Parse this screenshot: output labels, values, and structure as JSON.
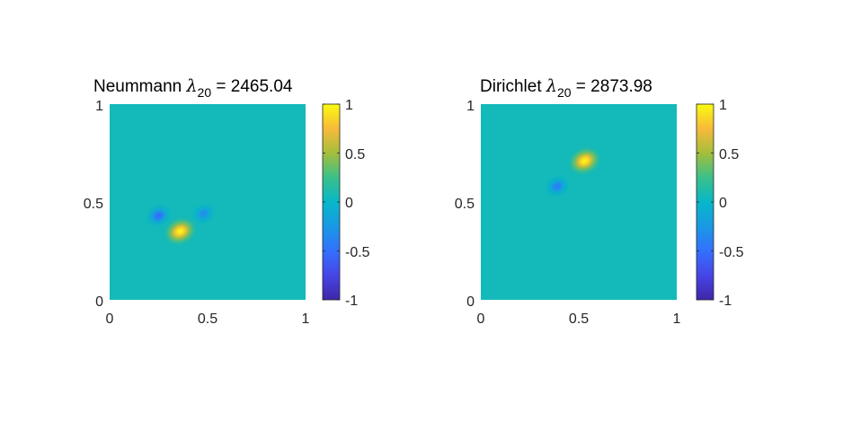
{
  "chart_data": [
    {
      "type": "heatmap",
      "title": {
        "prefix": "Neummann ",
        "symbol": "λ",
        "subscript": "20",
        "suffix": " = 2465.04"
      },
      "xlim": [
        0,
        1
      ],
      "ylim": [
        0,
        1
      ],
      "xticks": [
        "0",
        "0.5",
        "1"
      ],
      "yticks": [
        "0",
        "0.5",
        "1"
      ],
      "colorbar": {
        "range": [
          -1,
          1
        ],
        "ticks": [
          "-1",
          "-0.5",
          "0",
          "0.5",
          "1"
        ],
        "colormap": "parula"
      },
      "background_value": 0.06,
      "features": [
        {
          "x": 0.36,
          "y": 0.35,
          "value": 1.0,
          "label": "peak"
        },
        {
          "x": 0.25,
          "y": 0.43,
          "value": -0.55,
          "label": "trough"
        },
        {
          "x": 0.48,
          "y": 0.44,
          "value": -0.35,
          "label": "trough"
        }
      ]
    },
    {
      "type": "heatmap",
      "title": {
        "prefix": "Dirichlet ",
        "symbol": "λ",
        "subscript": "20",
        "suffix": " = 2873.98"
      },
      "xlim": [
        0,
        1
      ],
      "ylim": [
        0,
        1
      ],
      "xticks": [
        "0",
        "0.5",
        "1"
      ],
      "yticks": [
        "0",
        "0.5",
        "1"
      ],
      "colorbar": {
        "range": [
          -1,
          1
        ],
        "ticks": [
          "-1",
          "-0.5",
          "0",
          "0.5",
          "1"
        ],
        "colormap": "parula"
      },
      "background_value": 0.06,
      "features": [
        {
          "x": 0.53,
          "y": 0.71,
          "value": 1.0,
          "label": "peak"
        },
        {
          "x": 0.39,
          "y": 0.58,
          "value": -0.45,
          "label": "trough"
        }
      ]
    }
  ]
}
